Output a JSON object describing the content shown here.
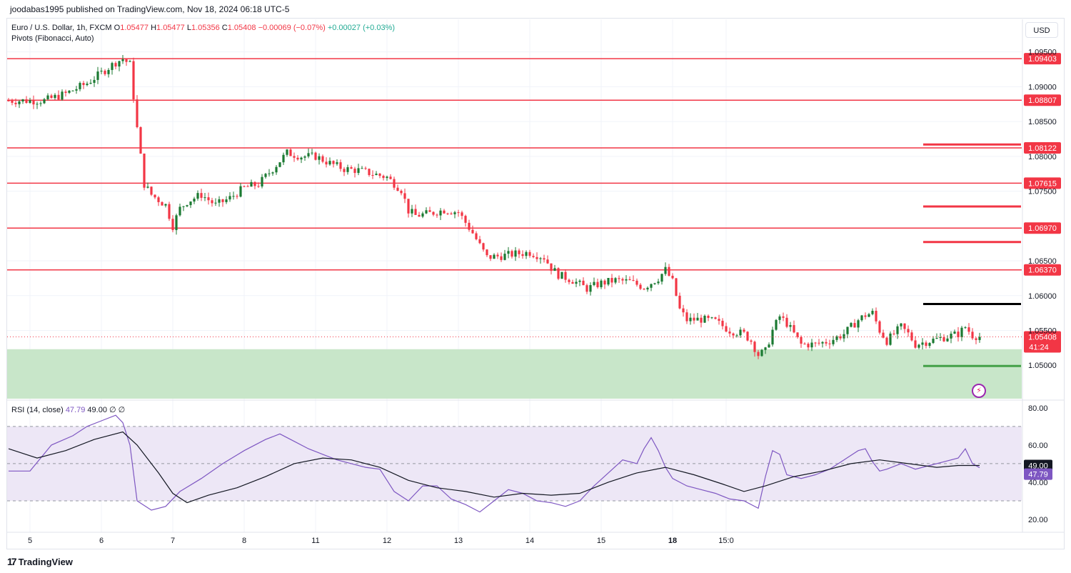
{
  "header": {
    "published": "joodabas1995 published on TradingView.com, Nov 18, 2024 06:18 UTC-5"
  },
  "legend": {
    "symbol": "Euro / U.S. Dollar, 1h, FXCM",
    "o_label": "O",
    "o": "1.05477",
    "h_label": "H",
    "h": "1.05477",
    "l_label": "L",
    "l": "1.05356",
    "c_label": "C",
    "c": "1.05408",
    "change": "−0.00069 (−0.07%)",
    "change2": "+0.00027 (+0.03%)",
    "pivots": "Pivots (Fibonacci, Auto)",
    "rsi_label": "RSI (14, close)",
    "rsi_value": "47.79",
    "rsi_ma": "49.00",
    "rsi_extra1": "∅",
    "rsi_extra2": "∅"
  },
  "currency_button": "USD",
  "brand": "TradingView",
  "colors": {
    "up": "#26a69a",
    "up_body": "#1b7a32",
    "down": "#f23645",
    "pivot": "#f23645",
    "zone": "#c8e6c9",
    "rsi_line": "#7e57c2",
    "rsi_ma": "#131722",
    "rsi_band": "#ede7f6"
  },
  "chart_data": [
    {
      "type": "candlestick",
      "title": "Euro / U.S. Dollar, 1h, FXCM",
      "x_ticks": [
        "5",
        "6",
        "7",
        "8",
        "11",
        "12",
        "13",
        "14",
        "15",
        "18",
        "15:0"
      ],
      "y_ticks": [
        "1.09500",
        "1.09000",
        "1.08500",
        "1.08000",
        "1.07500",
        "1.06500",
        "1.06000",
        "1.05500",
        "1.05000"
      ],
      "ylim": [
        1.0452,
        1.0963
      ],
      "last_price": "1.05408",
      "countdown": "41:24",
      "pivot_levels": [
        {
          "value": 1.09403,
          "label": "1.09403"
        },
        {
          "value": 1.08807,
          "label": "1.08807"
        },
        {
          "value": 1.08122,
          "label": "1.08122"
        },
        {
          "value": 1.07615,
          "label": "1.07615"
        },
        {
          "value": 1.0697,
          "label": "1.06970"
        },
        {
          "value": 1.0637,
          "label": "1.06370"
        }
      ],
      "right_segments": [
        {
          "value": 1.0817,
          "color": "#f23645"
        },
        {
          "value": 1.0728,
          "color": "#f23645"
        },
        {
          "value": 1.0677,
          "color": "#f23645"
        },
        {
          "value": 1.0588,
          "color": "#000000"
        },
        {
          "value": 1.0499,
          "color": "#43a047"
        }
      ],
      "support_zone": [
        1.0452,
        1.0523
      ],
      "price_path": [
        [
          0,
          1.088
        ],
        [
          5,
          1.088
        ],
        [
          8,
          1.089
        ],
        [
          11,
          1.0905
        ],
        [
          13,
          1.092
        ],
        [
          15,
          1.0935
        ],
        [
          16,
          1.094
        ],
        [
          17,
          1.0932
        ],
        [
          18,
          1.084
        ],
        [
          19,
          1.076
        ],
        [
          20,
          1.0745
        ],
        [
          22,
          1.073
        ],
        [
          23,
          1.07
        ],
        [
          24,
          1.0725
        ],
        [
          25,
          1.0735
        ],
        [
          27,
          1.0745
        ],
        [
          29,
          1.073
        ],
        [
          31,
          1.074
        ],
        [
          33,
          1.0755
        ],
        [
          35,
          1.076
        ],
        [
          37,
          1.0782
        ],
        [
          39,
          1.0805
        ],
        [
          41,
          1.08
        ],
        [
          43,
          1.08
        ],
        [
          45,
          1.079
        ],
        [
          47,
          1.0782
        ],
        [
          49,
          1.078
        ],
        [
          51,
          1.0775
        ],
        [
          53,
          1.077
        ],
        [
          55,
          1.0752
        ],
        [
          56,
          1.0722
        ],
        [
          57,
          1.0715
        ],
        [
          59,
          1.0718
        ],
        [
          61,
          1.0723
        ],
        [
          63,
          1.072
        ],
        [
          64,
          1.0705
        ],
        [
          65,
          1.069
        ],
        [
          66,
          1.0672
        ],
        [
          67,
          1.0655
        ],
        [
          69,
          1.0657
        ],
        [
          71,
          1.066
        ],
        [
          73,
          1.0662
        ],
        [
          75,
          1.0655
        ],
        [
          76,
          1.064
        ],
        [
          77,
          1.063
        ],
        [
          79,
          1.0622
        ],
        [
          81,
          1.061
        ],
        [
          83,
          1.0618
        ],
        [
          85,
          1.0622
        ],
        [
          87,
          1.062
        ],
        [
          89,
          1.0612
        ],
        [
          91,
          1.0625
        ],
        [
          92,
          1.0637
        ],
        [
          93,
          1.062
        ],
        [
          94,
          1.058
        ],
        [
          95,
          1.0565
        ],
        [
          97,
          1.0566
        ],
        [
          99,
          1.0563
        ],
        [
          101,
          1.055
        ],
        [
          103,
          1.0545
        ],
        [
          104,
          1.0535
        ],
        [
          105,
          1.0515
        ],
        [
          106,
          1.052
        ],
        [
          107,
          1.055
        ],
        [
          108,
          1.057
        ],
        [
          109,
          1.056
        ],
        [
          110,
          1.0545
        ],
        [
          111,
          1.053
        ],
        [
          113,
          1.053
        ],
        [
          115,
          1.0535
        ],
        [
          117,
          1.0545
        ],
        [
          119,
          1.0565
        ],
        [
          120,
          1.0572
        ],
        [
          121,
          1.0575
        ],
        [
          122,
          1.055
        ],
        [
          123,
          1.0535
        ],
        [
          125,
          1.0555
        ],
        [
          126,
          1.0545
        ],
        [
          127,
          1.053
        ],
        [
          129,
          1.0535
        ],
        [
          131,
          1.054
        ],
        [
          133,
          1.0545
        ],
        [
          134,
          1.0555
        ],
        [
          135,
          1.0543
        ],
        [
          136,
          1.0541
        ]
      ]
    },
    {
      "type": "line",
      "title": "RSI (14, close)",
      "y_ticks": [
        "80.00",
        "60.00",
        "40.00",
        "20.00"
      ],
      "ylim": [
        15,
        83
      ],
      "overbought": 70,
      "middle": 50,
      "oversold": 30,
      "last_rsi": "47.79",
      "last_ma": "49.00",
      "series": [
        {
          "name": "RSI",
          "values": [
            [
              0,
              46
            ],
            [
              3,
              46
            ],
            [
              6,
              60
            ],
            [
              9,
              65
            ],
            [
              11,
              70
            ],
            [
              13,
              73
            ],
            [
              15,
              76
            ],
            [
              16,
              72
            ],
            [
              17,
              60
            ],
            [
              18,
              30
            ],
            [
              20,
              25
            ],
            [
              22,
              27
            ],
            [
              24,
              35
            ],
            [
              27,
              42
            ],
            [
              30,
              50
            ],
            [
              33,
              57
            ],
            [
              36,
              63
            ],
            [
              38,
              66
            ],
            [
              40,
              62
            ],
            [
              42,
              58
            ],
            [
              44,
              55
            ],
            [
              46,
              52
            ],
            [
              48,
              50
            ],
            [
              50,
              48
            ],
            [
              52,
              47
            ],
            [
              54,
              35
            ],
            [
              56,
              30
            ],
            [
              58,
              38
            ],
            [
              60,
              38
            ],
            [
              62,
              31
            ],
            [
              64,
              28
            ],
            [
              66,
              24
            ],
            [
              68,
              30
            ],
            [
              70,
              36
            ],
            [
              72,
              34
            ],
            [
              74,
              30
            ],
            [
              76,
              29
            ],
            [
              78,
              27
            ],
            [
              80,
              30
            ],
            [
              82,
              38
            ],
            [
              84,
              45
            ],
            [
              86,
              52
            ],
            [
              88,
              50
            ],
            [
              89,
              58
            ],
            [
              90,
              64
            ],
            [
              91,
              57
            ],
            [
              92,
              48
            ],
            [
              93,
              42
            ],
            [
              95,
              38
            ],
            [
              97,
              36
            ],
            [
              99,
              34
            ],
            [
              101,
              31
            ],
            [
              103,
              30
            ],
            [
              105,
              26
            ],
            [
              106,
              43
            ],
            [
              107,
              57
            ],
            [
              108,
              55
            ],
            [
              109,
              44
            ],
            [
              111,
              42
            ],
            [
              113,
              44
            ],
            [
              115,
              47
            ],
            [
              117,
              52
            ],
            [
              119,
              57
            ],
            [
              120,
              58
            ],
            [
              121,
              51
            ],
            [
              122,
              46
            ],
            [
              123,
              47
            ],
            [
              125,
              50
            ],
            [
              127,
              47
            ],
            [
              129,
              49
            ],
            [
              131,
              51
            ],
            [
              133,
              53
            ],
            [
              134,
              58
            ],
            [
              135,
              50
            ],
            [
              136,
              47.79
            ]
          ]
        },
        {
          "name": "RSI MA",
          "values": [
            [
              0,
              58
            ],
            [
              4,
              53
            ],
            [
              8,
              57
            ],
            [
              12,
              63
            ],
            [
              16,
              67
            ],
            [
              18,
              60
            ],
            [
              21,
              45
            ],
            [
              23,
              34
            ],
            [
              25,
              29
            ],
            [
              28,
              33
            ],
            [
              32,
              37
            ],
            [
              36,
              43
            ],
            [
              40,
              50
            ],
            [
              44,
              53
            ],
            [
              48,
              52
            ],
            [
              52,
              48
            ],
            [
              56,
              41
            ],
            [
              60,
              37
            ],
            [
              64,
              35
            ],
            [
              68,
              32
            ],
            [
              72,
              34
            ],
            [
              76,
              33
            ],
            [
              80,
              34
            ],
            [
              84,
              40
            ],
            [
              88,
              45
            ],
            [
              92,
              48
            ],
            [
              96,
              44
            ],
            [
              100,
              39
            ],
            [
              103,
              35
            ],
            [
              106,
              38
            ],
            [
              110,
              43
            ],
            [
              114,
              46
            ],
            [
              118,
              50
            ],
            [
              122,
              52
            ],
            [
              126,
              50
            ],
            [
              130,
              48
            ],
            [
              133,
              49
            ],
            [
              136,
              49
            ]
          ]
        }
      ]
    }
  ]
}
